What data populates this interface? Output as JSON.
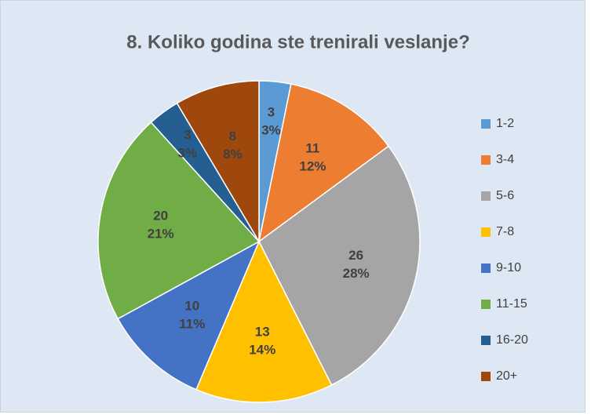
{
  "chart_data": {
    "type": "pie",
    "title": "8. Koliko godina ste trenirali veslanje?",
    "categories": [
      "1-2",
      "3-4",
      "5-6",
      "7-8",
      "9-10",
      "11-15",
      "16-20",
      "20+"
    ],
    "values": [
      3,
      11,
      26,
      13,
      10,
      20,
      3,
      8
    ],
    "percent_labels": [
      "3%",
      "12%",
      "28%",
      "14%",
      "11%",
      "21%",
      "3%",
      "8%"
    ],
    "colors": [
      "#5b9bd5",
      "#ed7d31",
      "#a5a5a5",
      "#ffc000",
      "#4472c4",
      "#70ad47",
      "#255e91",
      "#9e480e"
    ],
    "legend": "right"
  }
}
